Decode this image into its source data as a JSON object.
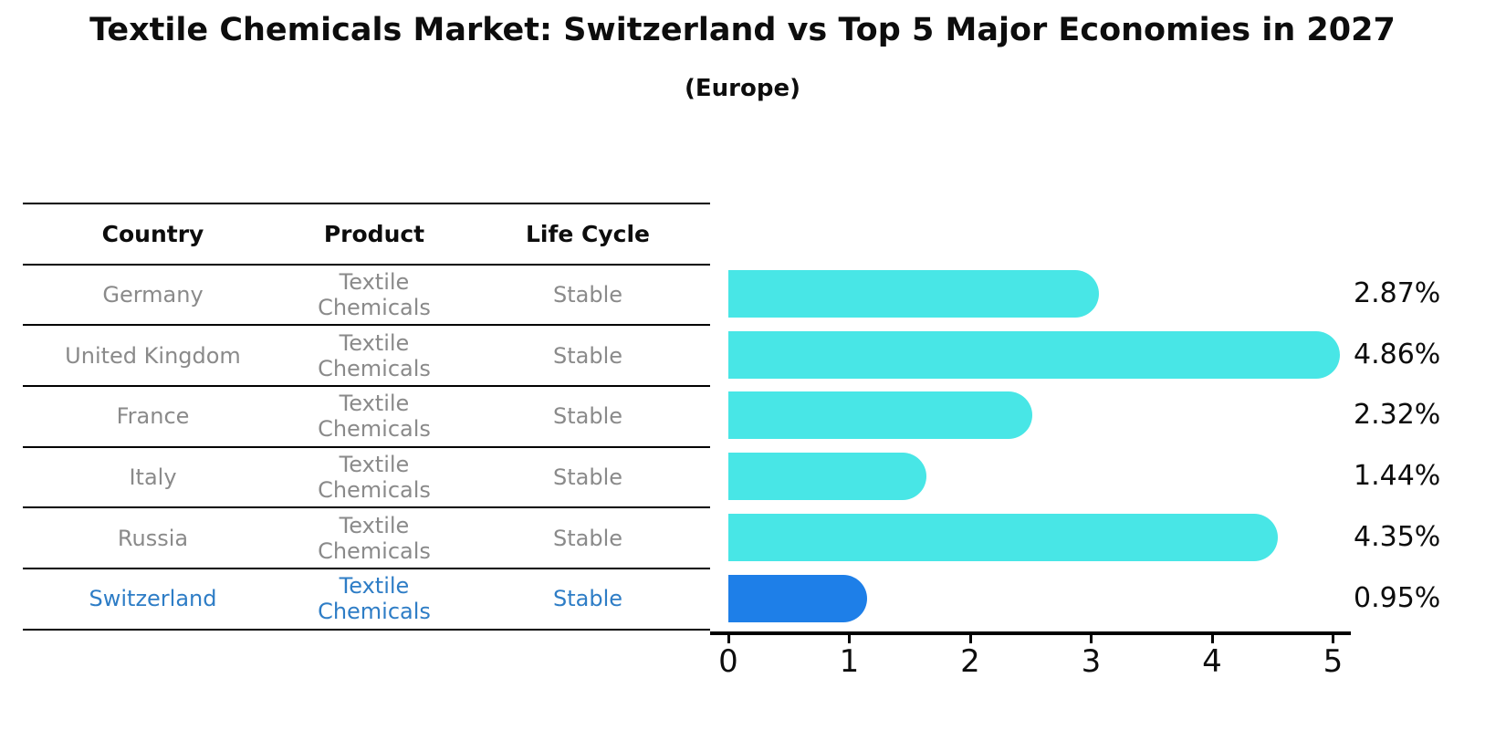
{
  "title": "Textile Chemicals Market: Switzerland vs Top 5 Major Economies in 2027",
  "subtitle": "(Europe)",
  "table": {
    "headers": [
      "Country",
      "Product",
      "Life Cycle"
    ],
    "rows": [
      {
        "country": "Germany",
        "product": "Textile Chemicals",
        "life_cycle": "Stable",
        "highlight": false
      },
      {
        "country": "United Kingdom",
        "product": "Textile Chemicals",
        "life_cycle": "Stable",
        "highlight": false
      },
      {
        "country": "France",
        "product": "Textile Chemicals",
        "life_cycle": "Stable",
        "highlight": false
      },
      {
        "country": "Italy",
        "product": "Textile Chemicals",
        "life_cycle": "Stable",
        "highlight": false
      },
      {
        "country": "Russia",
        "product": "Textile Chemicals",
        "life_cycle": "Stable",
        "highlight": false
      },
      {
        "country": "Switzerland",
        "product": "Textile Chemicals",
        "life_cycle": "Stable",
        "highlight": true
      }
    ]
  },
  "chart_data": {
    "type": "bar",
    "orientation": "horizontal",
    "title": "Textile Chemicals Market: Switzerland vs Top 5 Major Economies in 2027",
    "subtitle": "(Europe)",
    "categories": [
      "Germany",
      "United Kingdom",
      "France",
      "Italy",
      "Russia",
      "Switzerland"
    ],
    "values": [
      2.87,
      4.86,
      2.32,
      1.44,
      4.35,
      0.95
    ],
    "value_labels": [
      "2.87%",
      "4.86%",
      "2.32%",
      "1.44%",
      "4.35%",
      "0.95%"
    ],
    "x_ticks": [
      "0",
      "1",
      "2",
      "3",
      "4",
      "5"
    ],
    "xlim": [
      0,
      5
    ],
    "grid": false,
    "legend": false,
    "highlight_index": 5
  },
  "colors": {
    "bar": "#48E6E6",
    "highlight_bar": "#1E7FE8",
    "highlight_border": "#155CC8",
    "highlight_text": "#2e7dc6",
    "row_text": "#8a8a8a",
    "axis": "#000000"
  }
}
